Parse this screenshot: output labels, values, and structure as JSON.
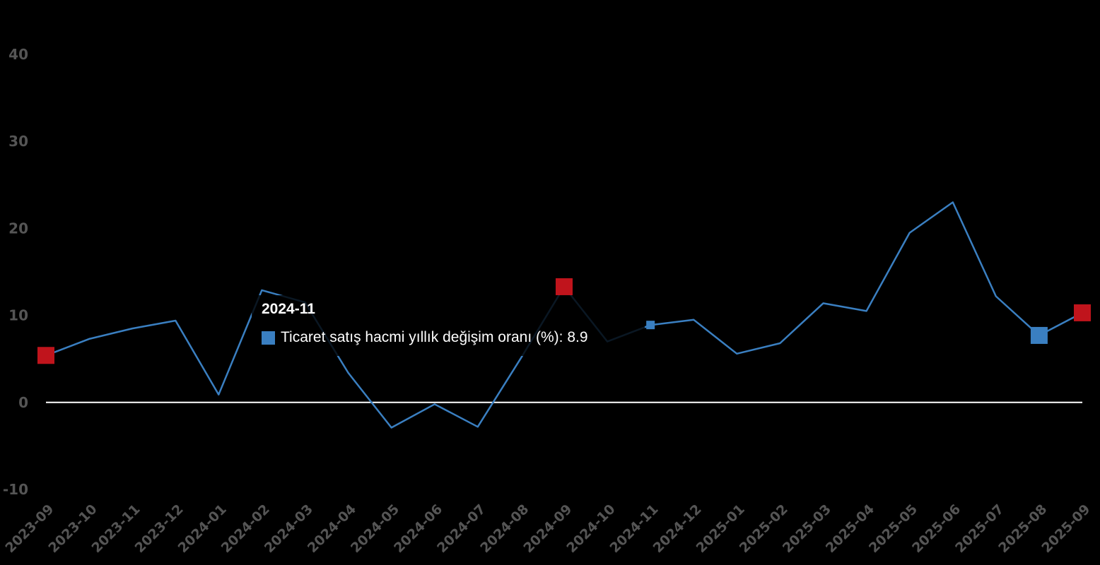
{
  "chart_data": {
    "type": "line",
    "title": "",
    "xlabel": "",
    "ylabel": "",
    "categories": [
      "2023-09",
      "2023-10",
      "2023-11",
      "2023-12",
      "2024-01",
      "2024-02",
      "2024-03",
      "2024-04",
      "2024-05",
      "2024-06",
      "2024-07",
      "2024-08",
      "2024-09",
      "2024-10",
      "2024-11",
      "2024-12",
      "2025-01",
      "2025-02",
      "2025-03",
      "2025-04",
      "2025-05",
      "2025-06",
      "2025-07",
      "2025-08",
      "2025-09"
    ],
    "series": [
      {
        "name": "Ticaret satış hacmi yıllık değişim oranı (%)",
        "color": "#3a7fc1",
        "values": [
          5.4,
          7.3,
          8.5,
          9.4,
          0.9,
          12.9,
          11.5,
          3.4,
          -2.9,
          -0.2,
          -2.8,
          5.1,
          13.3,
          7.0,
          8.9,
          9.5,
          5.6,
          6.8,
          11.4,
          10.5,
          19.5,
          23.0,
          12.2,
          7.7,
          10.3
        ]
      }
    ],
    "highlighted_points": [
      {
        "category": "2023-09",
        "value": 5.4,
        "color": "#c0141c"
      },
      {
        "category": "2024-09",
        "value": 13.3,
        "color": "#c0141c"
      },
      {
        "category": "2025-08",
        "value": 7.7,
        "color": "#3a7fc1"
      },
      {
        "category": "2025-09",
        "value": 10.3,
        "color": "#c0141c"
      }
    ],
    "yticks": [
      -10,
      0,
      10,
      20,
      30,
      40
    ],
    "ylim": [
      -10,
      40
    ],
    "grid": false,
    "zero_line": true,
    "legend": "none"
  },
  "tooltip": {
    "title": "2024-11",
    "label": "Ticaret satış hacmi yıllık değişim oranı (%): 8.9",
    "color": "#3a7fc1"
  }
}
